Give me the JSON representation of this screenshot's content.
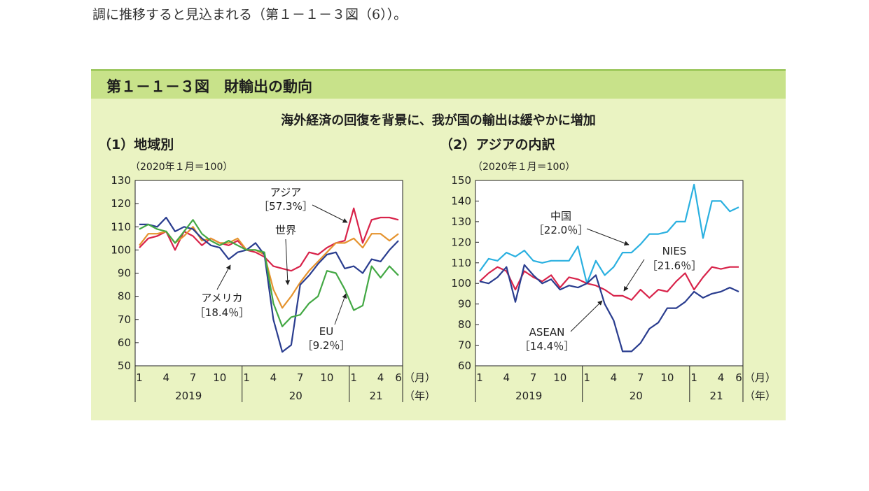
{
  "intro_text": "調に推移すると見込まれる（第１－１－３図（6））。",
  "figure": {
    "title": "第１－１－３図　財輸出の動向",
    "subtitle": "海外経済の回復を背景に、我が国の輸出は緩やかに増加"
  },
  "colors": {
    "header_bg": "#c8e28a",
    "panel_bg": "#eaf3c2"
  },
  "chart_data": [
    {
      "type": "line",
      "title": "（1）地域別",
      "unit_note": "（2020年１月＝100）",
      "ylim": [
        50,
        130
      ],
      "yticks": [
        50,
        60,
        70,
        80,
        90,
        100,
        110,
        120,
        130
      ],
      "x_tick_labels": [
        {
          "idx": 0,
          "label": "1"
        },
        {
          "idx": 3,
          "label": "4"
        },
        {
          "idx": 6,
          "label": "7"
        },
        {
          "idx": 9,
          "label": "10"
        },
        {
          "idx": 12,
          "label": "1"
        },
        {
          "idx": 15,
          "label": "4"
        },
        {
          "idx": 18,
          "label": "7"
        },
        {
          "idx": 21,
          "label": "10"
        },
        {
          "idx": 24,
          "label": "1"
        },
        {
          "idx": 27,
          "label": "4"
        },
        {
          "idx": 29,
          "label": "6"
        }
      ],
      "month_unit": "（月）",
      "year_unit": "（年）",
      "years": [
        {
          "label": "2019",
          "start": 0,
          "end": 11
        },
        {
          "label": "20",
          "start": 12,
          "end": 23
        },
        {
          "label": "21",
          "start": 24,
          "end": 29
        }
      ],
      "series": [
        {
          "name": "アジア",
          "share": "［57.3%］",
          "color": "#d8234a",
          "values": [
            101,
            105,
            106,
            108,
            100,
            108,
            106,
            102,
            105,
            103,
            102,
            104,
            100,
            99,
            97,
            93,
            92,
            91,
            93,
            99,
            98,
            101,
            103,
            104,
            118,
            103,
            113,
            114,
            114,
            113
          ]
        },
        {
          "name": "世界",
          "color": "#e5932e",
          "values": [
            102,
            107,
            107,
            108,
            103,
            106,
            110,
            104,
            105,
            103,
            103,
            105,
            100,
            100,
            98,
            83,
            75,
            80,
            86,
            91,
            95,
            99,
            103,
            103,
            105,
            101,
            107,
            107,
            104,
            107
          ]
        },
        {
          "name": "アメリカ",
          "share": "［18.4％］",
          "color": "#2a3d8f",
          "values": [
            111,
            111,
            110,
            114,
            108,
            110,
            109,
            105,
            102,
            101,
            96,
            99,
            100,
            103,
            98,
            70,
            56,
            59,
            85,
            89,
            94,
            98,
            99,
            92,
            93,
            90,
            96,
            95,
            100,
            104
          ]
        },
        {
          "name": "EU",
          "share": "［9.2％］",
          "color": "#43a844",
          "values": [
            109,
            111,
            109,
            108,
            103,
            108,
            113,
            107,
            104,
            102,
            104,
            102,
            100,
            100,
            99,
            77,
            67,
            71,
            72,
            77,
            80,
            91,
            90,
            83,
            74,
            76,
            93,
            88,
            93,
            89
          ]
        }
      ]
    },
    {
      "type": "line",
      "title": "（2）アジアの内訳",
      "unit_note": "（2020年１月＝100）",
      "ylim": [
        60,
        150
      ],
      "yticks": [
        60,
        70,
        80,
        90,
        100,
        110,
        120,
        130,
        140,
        150
      ],
      "x_tick_labels": [
        {
          "idx": 0,
          "label": "1"
        },
        {
          "idx": 3,
          "label": "4"
        },
        {
          "idx": 6,
          "label": "7"
        },
        {
          "idx": 9,
          "label": "10"
        },
        {
          "idx": 12,
          "label": "1"
        },
        {
          "idx": 15,
          "label": "4"
        },
        {
          "idx": 18,
          "label": "7"
        },
        {
          "idx": 21,
          "label": "10"
        },
        {
          "idx": 24,
          "label": "1"
        },
        {
          "idx": 27,
          "label": "4"
        },
        {
          "idx": 29,
          "label": "6"
        }
      ],
      "month_unit": "（月）",
      "year_unit": "（年）",
      "years": [
        {
          "label": "2019",
          "start": 0,
          "end": 11
        },
        {
          "label": "20",
          "start": 12,
          "end": 23
        },
        {
          "label": "21",
          "start": 24,
          "end": 29
        }
      ],
      "series": [
        {
          "name": "中国",
          "share": "［22.0％］",
          "color": "#2ab0e0",
          "values": [
            106,
            112,
            111,
            115,
            113,
            116,
            111,
            110,
            111,
            111,
            111,
            118,
            100,
            111,
            104,
            108,
            115,
            115,
            119,
            124,
            124,
            125,
            130,
            130,
            148,
            122,
            140,
            140,
            135,
            137
          ]
        },
        {
          "name": "NIES",
          "share": "［21.6％］",
          "color": "#d8234a",
          "values": [
            101,
            105,
            108,
            106,
            97,
            106,
            103,
            101,
            104,
            98,
            103,
            102,
            100,
            99,
            97,
            94,
            94,
            92,
            97,
            93,
            97,
            96,
            101,
            105,
            97,
            103,
            108,
            107,
            108,
            108
          ]
        },
        {
          "name": "ASEAN",
          "share": "［14.4％］",
          "color": "#2a3d8f",
          "values": [
            101,
            100,
            103,
            108,
            91,
            109,
            104,
            100,
            102,
            97,
            99,
            98,
            100,
            104,
            90,
            82,
            67,
            67,
            71,
            78,
            81,
            88,
            88,
            91,
            96,
            93,
            95,
            96,
            98,
            96
          ]
        }
      ]
    }
  ]
}
